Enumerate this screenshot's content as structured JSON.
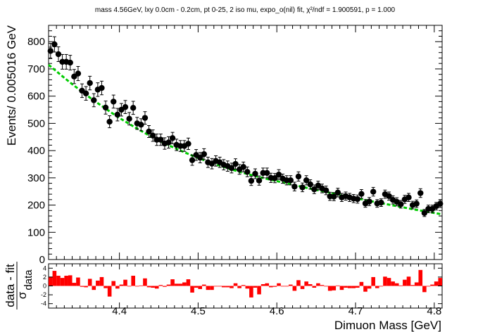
{
  "chart_data": [
    {
      "type": "scatter",
      "title": "mass 4.56GeV, lxy 0.0cm - 0.2cm, pt 0-25, 2 iso mu, expo_o(nil) fit, χ²/ndf = 1.900591, p = 1.000",
      "xlabel": "",
      "ylabel": "Events/ 0.005016 GeV",
      "xlim": [
        4.31,
        4.81
      ],
      "ylim": [
        0,
        860
      ],
      "x_ticks": [
        4.4,
        4.5,
        4.6,
        4.7,
        4.8
      ],
      "y_ticks": [
        0,
        100,
        200,
        300,
        400,
        500,
        600,
        700,
        800
      ],
      "grid": false,
      "colors": {
        "data": "#000000",
        "fit": "#00cc00"
      },
      "series": [
        {
          "type": "scatter",
          "x": [
            4.3125,
            4.3175,
            4.3225,
            4.3275,
            4.3325,
            4.3375,
            4.3425,
            4.3475,
            4.3525,
            4.3575,
            4.3625,
            4.3675,
            4.3725,
            4.3775,
            4.3825,
            4.3875,
            4.3925,
            4.3975,
            4.4025,
            4.4075,
            4.4125,
            4.4175,
            4.4225,
            4.4275,
            4.4325,
            4.4375,
            4.4425,
            4.4475,
            4.4525,
            4.4575,
            4.4625,
            4.4675,
            4.4725,
            4.4775,
            4.4825,
            4.4875,
            4.4925,
            4.4975,
            4.5025,
            4.5075,
            4.5125,
            4.5175,
            4.5225,
            4.5275,
            4.5325,
            4.5375,
            4.5425,
            4.5475,
            4.5525,
            4.5575,
            4.5625,
            4.5675,
            4.5725,
            4.5775,
            4.5825,
            4.5875,
            4.5925,
            4.5975,
            4.6025,
            4.6075,
            4.6125,
            4.6175,
            4.6225,
            4.6275,
            4.6325,
            4.6375,
            4.6425,
            4.6475,
            4.6525,
            4.6575,
            4.6625,
            4.6675,
            4.6725,
            4.6775,
            4.6825,
            4.6875,
            4.6925,
            4.6975,
            4.7025,
            4.7075,
            4.7125,
            4.7175,
            4.7225,
            4.7275,
            4.7325,
            4.7375,
            4.7425,
            4.7475,
            4.7525,
            4.7575,
            4.7625,
            4.7675,
            4.7725,
            4.7775,
            4.7825,
            4.7875,
            4.7925,
            4.7975,
            4.8025,
            4.8075
          ],
          "y": [
            766,
            790,
            754,
            726,
            726,
            723,
            672,
            683,
            620,
            610,
            648,
            585,
            624,
            630,
            558,
            506,
            580,
            532,
            550,
            560,
            517,
            557,
            500,
            495,
            520,
            470,
            455,
            440,
            440,
            426,
            430,
            446,
            421,
            417,
            417,
            425,
            365,
            384,
            374,
            387,
            357,
            352,
            362,
            357,
            348,
            343,
            336,
            351,
            331,
            340,
            322,
            289,
            315,
            290,
            318,
            318,
            300,
            299,
            312,
            297,
            291,
            291,
            268,
            305,
            265,
            291,
            276,
            258,
            272,
            261,
            254,
            232,
            231,
            246,
            228,
            233,
            228,
            224,
            222,
            241,
            206,
            213,
            249,
            206,
            209,
            240,
            233,
            219,
            212,
            203,
            221,
            228,
            200,
            205,
            244,
            171,
            186,
            186,
            196,
            205
          ],
          "yerr": [
            28,
            28,
            27,
            27,
            27,
            27,
            26,
            26,
            25,
            25,
            25,
            24,
            25,
            25,
            24,
            22,
            24,
            23,
            23,
            24,
            23,
            24,
            22,
            22,
            23,
            22,
            21,
            21,
            21,
            21,
            21,
            21,
            21,
            20,
            20,
            21,
            19,
            20,
            19,
            20,
            19,
            19,
            19,
            19,
            19,
            19,
            18,
            19,
            18,
            18,
            18,
            17,
            18,
            17,
            18,
            18,
            17,
            17,
            18,
            17,
            17,
            17,
            16,
            17,
            16,
            17,
            17,
            16,
            16,
            16,
            16,
            15,
            15,
            16,
            15,
            15,
            15,
            15,
            15,
            16,
            14,
            15,
            16,
            14,
            14,
            15,
            15,
            15,
            15,
            14,
            15,
            15,
            14,
            14,
            16,
            13,
            14,
            14,
            14,
            14
          ]
        },
        {
          "type": "line",
          "style": "dashed",
          "x": [
            4.31,
            4.32,
            4.33,
            4.34,
            4.35,
            4.36,
            4.37,
            4.38,
            4.39,
            4.4,
            4.42,
            4.44,
            4.46,
            4.48,
            4.5,
            4.52,
            4.54,
            4.56,
            4.58,
            4.6,
            4.62,
            4.64,
            4.66,
            4.68,
            4.7,
            4.72,
            4.74,
            4.76,
            4.78,
            4.8,
            4.81
          ],
          "y": [
            715,
            691,
            667,
            644,
            622,
            600,
            579,
            559,
            539,
            520,
            485,
            452,
            423,
            397,
            373,
            352,
            333,
            316,
            301,
            288,
            275,
            262,
            250,
            238,
            226,
            214,
            203,
            192,
            181,
            171,
            166
          ]
        }
      ]
    },
    {
      "type": "bar",
      "xlabel": "Dimuon Mass [GeV]",
      "ylabel": "data - fit",
      "ylabel_sub": "σ",
      "ylabel_sub2": "data",
      "xlim": [
        4.31,
        4.81
      ],
      "ylim": [
        -5,
        5
      ],
      "x_ticks": [
        4.4,
        4.5,
        4.6,
        4.7,
        4.8
      ],
      "y_ticks": [
        -4,
        -2,
        0,
        2,
        4
      ],
      "colors": {
        "bars": "#ff0000"
      },
      "x": [
        4.3125,
        4.3175,
        4.3225,
        4.3275,
        4.3325,
        4.3375,
        4.3425,
        4.3475,
        4.3525,
        4.3575,
        4.3625,
        4.3675,
        4.3725,
        4.3775,
        4.3825,
        4.3875,
        4.3925,
        4.3975,
        4.4025,
        4.4075,
        4.4125,
        4.4175,
        4.4225,
        4.4275,
        4.4325,
        4.4375,
        4.4425,
        4.4475,
        4.4525,
        4.4575,
        4.4625,
        4.4675,
        4.4725,
        4.4775,
        4.4825,
        4.4875,
        4.4925,
        4.4975,
        4.5025,
        4.5075,
        4.5125,
        4.5175,
        4.5225,
        4.5275,
        4.5325,
        4.5375,
        4.5425,
        4.5475,
        4.5525,
        4.5575,
        4.5625,
        4.5675,
        4.5725,
        4.5775,
        4.5825,
        4.5875,
        4.5925,
        4.5975,
        4.6025,
        4.6075,
        4.6125,
        4.6175,
        4.6225,
        4.6275,
        4.6325,
        4.6375,
        4.6425,
        4.6475,
        4.6525,
        4.6575,
        4.6625,
        4.6675,
        4.6725,
        4.6775,
        4.6825,
        4.6875,
        4.6925,
        4.6975,
        4.7025,
        4.7075,
        4.7125,
        4.7175,
        4.7225,
        4.7275,
        4.7325,
        4.7375,
        4.7425,
        4.7475,
        4.7525,
        4.7575,
        4.7625,
        4.7675,
        4.7725,
        4.7775,
        4.7825,
        4.7875,
        4.7925,
        4.7975,
        4.8025,
        4.8075
      ],
      "values": [
        2.1,
        3.4,
        2.3,
        1.8,
        2.3,
        2.4,
        0.7,
        1.9,
        -0.2,
        -0.3,
        1.6,
        -0.9,
        1.2,
        2.0,
        -0.5,
        -2.4,
        1.1,
        -0.6,
        0.3,
        1.4,
        -0.1,
        2.3,
        -0.1,
        0.1,
        1.7,
        -0.3,
        -0.4,
        -0.6,
        0.2,
        -0.2,
        0.3,
        1.5,
        0.5,
        0.5,
        0.8,
        1.5,
        -1.5,
        -0.4,
        -0.7,
        0.3,
        -0.9,
        -0.9,
        -0.1,
        -0.1,
        -0.3,
        -0.3,
        -0.5,
        0.6,
        -0.5,
        0.2,
        -0.6,
        -2.6,
        -0.4,
        -1.9,
        0.4,
        0.6,
        -0.3,
        -0.2,
        0.6,
        0.0,
        -0.1,
        0.3,
        -1.1,
        1.3,
        -0.7,
        1.0,
        0.4,
        -0.4,
        0.6,
        0.2,
        0.0,
        -1.1,
        -1.0,
        0.1,
        -0.9,
        -0.4,
        -0.5,
        -0.5,
        -0.4,
        0.9,
        -1.3,
        -0.6,
        2.0,
        -0.5,
        -0.1,
        2.1,
        1.8,
        1.0,
        0.6,
        0.1,
        1.4,
        2.1,
        0.2,
        0.8,
        3.6,
        -1.4,
        0.0,
        0.3,
        1.0,
        1.8
      ]
    }
  ]
}
